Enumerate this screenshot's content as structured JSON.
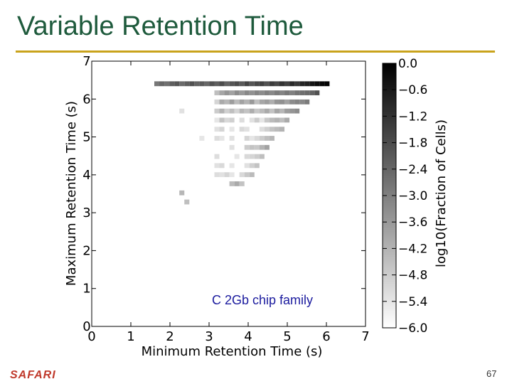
{
  "slide": {
    "title": "Variable Retention Time",
    "logo": "SAFARI",
    "page_number": "67",
    "colors": {
      "title": "#1e5a3c",
      "rule": "#c9a31c",
      "logo": "#c0392b",
      "annotation": "#1a1a9e"
    }
  },
  "chart_data": {
    "type": "heatmap",
    "title": "",
    "xlabel": "Minimum Retention Time (s)",
    "ylabel": "Maximum Retention Time (s)",
    "xlim": [
      0,
      7
    ],
    "ylim": [
      0,
      7
    ],
    "xticks": [
      "0",
      "1",
      "2",
      "3",
      "4",
      "5",
      "6",
      "7"
    ],
    "yticks": [
      "0",
      "1",
      "2",
      "3",
      "4",
      "5",
      "6",
      "7"
    ],
    "bin_size": 0.128,
    "value_label": "log10(Fraction of Cells)",
    "colorbar_ticks": [
      "0.0",
      "−0.6",
      "−1.2",
      "−1.8",
      "−2.4",
      "−3.0",
      "−3.6",
      "−4.2",
      "−4.8",
      "−5.4",
      "−6.0"
    ],
    "colorbar_range": [
      -6.0,
      0.0
    ],
    "annotation": "C 2Gb chip family",
    "cells": [
      {
        "x": 1.6,
        "y": 6.34,
        "v": -2.8
      },
      {
        "x": 1.728,
        "y": 6.34,
        "v": -2.4
      },
      {
        "x": 1.856,
        "y": 6.34,
        "v": -2.6
      },
      {
        "x": 1.984,
        "y": 6.34,
        "v": -2.2
      },
      {
        "x": 2.112,
        "y": 6.34,
        "v": -2.0
      },
      {
        "x": 2.24,
        "y": 6.34,
        "v": -2.5
      },
      {
        "x": 2.368,
        "y": 6.34,
        "v": -2.2
      },
      {
        "x": 2.496,
        "y": 6.34,
        "v": -1.9
      },
      {
        "x": 2.624,
        "y": 6.34,
        "v": -2.3
      },
      {
        "x": 2.752,
        "y": 6.34,
        "v": -2.1
      },
      {
        "x": 2.88,
        "y": 6.34,
        "v": -2.4
      },
      {
        "x": 3.008,
        "y": 6.34,
        "v": -1.9
      },
      {
        "x": 3.136,
        "y": 6.34,
        "v": -2.2
      },
      {
        "x": 3.264,
        "y": 6.34,
        "v": -1.8
      },
      {
        "x": 3.392,
        "y": 6.34,
        "v": -2.3
      },
      {
        "x": 3.52,
        "y": 6.34,
        "v": -2.0
      },
      {
        "x": 3.648,
        "y": 6.34,
        "v": -1.8
      },
      {
        "x": 3.776,
        "y": 6.34,
        "v": -2.1
      },
      {
        "x": 3.904,
        "y": 6.34,
        "v": -1.6
      },
      {
        "x": 4.032,
        "y": 6.34,
        "v": -2.0
      },
      {
        "x": 4.16,
        "y": 6.34,
        "v": -1.7
      },
      {
        "x": 4.288,
        "y": 6.34,
        "v": -1.5
      },
      {
        "x": 4.416,
        "y": 6.34,
        "v": -1.9
      },
      {
        "x": 4.544,
        "y": 6.34,
        "v": -1.4
      },
      {
        "x": 4.672,
        "y": 6.34,
        "v": -1.7
      },
      {
        "x": 4.8,
        "y": 6.34,
        "v": -1.2
      },
      {
        "x": 4.928,
        "y": 6.34,
        "v": -1.5
      },
      {
        "x": 5.056,
        "y": 6.34,
        "v": -1.0
      },
      {
        "x": 5.184,
        "y": 6.34,
        "v": -1.3
      },
      {
        "x": 5.312,
        "y": 6.34,
        "v": -0.9
      },
      {
        "x": 5.44,
        "y": 6.34,
        "v": -0.8
      },
      {
        "x": 5.568,
        "y": 6.34,
        "v": -0.5
      },
      {
        "x": 5.696,
        "y": 6.34,
        "v": -0.3
      },
      {
        "x": 5.824,
        "y": 6.34,
        "v": -0.2
      },
      {
        "x": 5.952,
        "y": 6.34,
        "v": -0.1
      },
      {
        "x": 3.136,
        "y": 6.1,
        "v": -4.5
      },
      {
        "x": 3.264,
        "y": 6.1,
        "v": -3.9
      },
      {
        "x": 3.392,
        "y": 6.1,
        "v": -3.5
      },
      {
        "x": 3.52,
        "y": 6.1,
        "v": -3.8
      },
      {
        "x": 3.648,
        "y": 6.1,
        "v": -3.3
      },
      {
        "x": 3.776,
        "y": 6.1,
        "v": -3.6
      },
      {
        "x": 3.904,
        "y": 6.1,
        "v": -3.2
      },
      {
        "x": 4.032,
        "y": 6.1,
        "v": -3.4
      },
      {
        "x": 4.16,
        "y": 6.1,
        "v": -3.1
      },
      {
        "x": 4.288,
        "y": 6.1,
        "v": -3.3
      },
      {
        "x": 4.416,
        "y": 6.1,
        "v": -3.0
      },
      {
        "x": 4.544,
        "y": 6.1,
        "v": -3.2
      },
      {
        "x": 4.672,
        "y": 6.1,
        "v": -2.9
      },
      {
        "x": 4.8,
        "y": 6.1,
        "v": -3.1
      },
      {
        "x": 4.928,
        "y": 6.1,
        "v": -2.8
      },
      {
        "x": 5.056,
        "y": 6.1,
        "v": -3.0
      },
      {
        "x": 5.184,
        "y": 6.1,
        "v": -2.7
      },
      {
        "x": 5.312,
        "y": 6.1,
        "v": -2.6
      },
      {
        "x": 5.44,
        "y": 6.1,
        "v": -2.5
      },
      {
        "x": 5.568,
        "y": 6.1,
        "v": -2.3
      },
      {
        "x": 5.696,
        "y": 6.1,
        "v": -1.9
      },
      {
        "x": 3.136,
        "y": 5.86,
        "v": -5.0
      },
      {
        "x": 3.264,
        "y": 5.86,
        "v": -4.0
      },
      {
        "x": 3.392,
        "y": 5.86,
        "v": -4.3
      },
      {
        "x": 3.52,
        "y": 5.86,
        "v": -3.7
      },
      {
        "x": 3.648,
        "y": 5.86,
        "v": -4.4
      },
      {
        "x": 3.776,
        "y": 5.86,
        "v": -3.8
      },
      {
        "x": 3.904,
        "y": 5.86,
        "v": -4.2
      },
      {
        "x": 4.032,
        "y": 5.86,
        "v": -3.6
      },
      {
        "x": 4.16,
        "y": 5.86,
        "v": -4.5
      },
      {
        "x": 4.288,
        "y": 5.86,
        "v": -3.9
      },
      {
        "x": 4.416,
        "y": 5.86,
        "v": -3.7
      },
      {
        "x": 4.544,
        "y": 5.86,
        "v": -4.1
      },
      {
        "x": 4.672,
        "y": 5.86,
        "v": -3.5
      },
      {
        "x": 4.8,
        "y": 5.86,
        "v": -3.4
      },
      {
        "x": 4.928,
        "y": 5.86,
        "v": -3.8
      },
      {
        "x": 5.056,
        "y": 5.86,
        "v": -3.3
      },
      {
        "x": 5.184,
        "y": 5.86,
        "v": -3.1
      },
      {
        "x": 5.312,
        "y": 5.86,
        "v": -3.2
      },
      {
        "x": 5.44,
        "y": 5.86,
        "v": -2.9
      },
      {
        "x": 2.24,
        "y": 5.62,
        "v": -5.3
      },
      {
        "x": 3.136,
        "y": 5.62,
        "v": -4.8
      },
      {
        "x": 3.264,
        "y": 5.62,
        "v": -4.2
      },
      {
        "x": 3.392,
        "y": 5.62,
        "v": -4.9
      },
      {
        "x": 3.52,
        "y": 5.62,
        "v": -4.5
      },
      {
        "x": 3.648,
        "y": 5.62,
        "v": -5.0
      },
      {
        "x": 3.776,
        "y": 5.62,
        "v": -4.3
      },
      {
        "x": 3.904,
        "y": 5.62,
        "v": -4.6
      },
      {
        "x": 4.032,
        "y": 5.62,
        "v": -4.1
      },
      {
        "x": 4.16,
        "y": 5.62,
        "v": -4.7
      },
      {
        "x": 4.288,
        "y": 5.62,
        "v": -4.4
      },
      {
        "x": 4.416,
        "y": 5.62,
        "v": -4.0
      },
      {
        "x": 4.544,
        "y": 5.62,
        "v": -4.6
      },
      {
        "x": 4.672,
        "y": 5.62,
        "v": -3.9
      },
      {
        "x": 4.8,
        "y": 5.62,
        "v": -4.3
      },
      {
        "x": 4.928,
        "y": 5.62,
        "v": -3.7
      },
      {
        "x": 5.056,
        "y": 5.62,
        "v": -3.5
      },
      {
        "x": 5.184,
        "y": 5.62,
        "v": -3.3
      },
      {
        "x": 3.136,
        "y": 5.38,
        "v": -5.4
      },
      {
        "x": 3.264,
        "y": 5.38,
        "v": -4.6
      },
      {
        "x": 3.392,
        "y": 5.38,
        "v": -5.1
      },
      {
        "x": 3.52,
        "y": 5.38,
        "v": -4.9
      },
      {
        "x": 3.776,
        "y": 5.38,
        "v": -5.2
      },
      {
        "x": 4.032,
        "y": 5.38,
        "v": -5.3
      },
      {
        "x": 4.16,
        "y": 5.38,
        "v": -4.8
      },
      {
        "x": 4.288,
        "y": 5.38,
        "v": -5.4
      },
      {
        "x": 4.416,
        "y": 5.38,
        "v": -4.7
      },
      {
        "x": 4.544,
        "y": 5.38,
        "v": -4.4
      },
      {
        "x": 4.672,
        "y": 5.38,
        "v": -4.2
      },
      {
        "x": 4.8,
        "y": 5.38,
        "v": -4.5
      },
      {
        "x": 4.928,
        "y": 5.38,
        "v": -4.0
      },
      {
        "x": 3.136,
        "y": 5.14,
        "v": -5.3
      },
      {
        "x": 3.264,
        "y": 5.14,
        "v": -5.0
      },
      {
        "x": 3.52,
        "y": 5.14,
        "v": -5.4
      },
      {
        "x": 3.776,
        "y": 5.14,
        "v": -5.1
      },
      {
        "x": 3.904,
        "y": 5.14,
        "v": -5.3
      },
      {
        "x": 4.288,
        "y": 5.14,
        "v": -5.2
      },
      {
        "x": 4.416,
        "y": 5.14,
        "v": -4.9
      },
      {
        "x": 4.544,
        "y": 5.14,
        "v": -4.6
      },
      {
        "x": 4.672,
        "y": 5.14,
        "v": -4.4
      },
      {
        "x": 4.8,
        "y": 5.14,
        "v": -4.2
      },
      {
        "x": 2.752,
        "y": 4.9,
        "v": -5.4
      },
      {
        "x": 3.136,
        "y": 4.9,
        "v": -5.2
      },
      {
        "x": 3.264,
        "y": 4.9,
        "v": -5.4
      },
      {
        "x": 3.52,
        "y": 4.9,
        "v": -5.3
      },
      {
        "x": 3.904,
        "y": 4.9,
        "v": -5.0
      },
      {
        "x": 4.032,
        "y": 4.9,
        "v": -5.4
      },
      {
        "x": 4.16,
        "y": 4.9,
        "v": -5.1
      },
      {
        "x": 4.288,
        "y": 4.9,
        "v": -4.8
      },
      {
        "x": 4.416,
        "y": 4.9,
        "v": -4.5
      },
      {
        "x": 4.544,
        "y": 4.9,
        "v": -4.3
      },
      {
        "x": 3.52,
        "y": 4.66,
        "v": -5.3
      },
      {
        "x": 3.904,
        "y": 4.66,
        "v": -4.8
      },
      {
        "x": 4.032,
        "y": 4.66,
        "v": -4.6
      },
      {
        "x": 4.16,
        "y": 4.66,
        "v": -4.7
      },
      {
        "x": 4.288,
        "y": 4.66,
        "v": -4.2
      },
      {
        "x": 4.416,
        "y": 4.66,
        "v": -3.8
      },
      {
        "x": 3.136,
        "y": 4.42,
        "v": -5.2
      },
      {
        "x": 3.648,
        "y": 4.42,
        "v": -5.4
      },
      {
        "x": 3.904,
        "y": 4.42,
        "v": -5.1
      },
      {
        "x": 4.032,
        "y": 4.42,
        "v": -5.0
      },
      {
        "x": 4.16,
        "y": 4.42,
        "v": -4.8
      },
      {
        "x": 4.288,
        "y": 4.42,
        "v": -4.5
      },
      {
        "x": 3.136,
        "y": 4.18,
        "v": -5.3
      },
      {
        "x": 3.264,
        "y": 4.18,
        "v": -5.1
      },
      {
        "x": 3.52,
        "y": 4.18,
        "v": -5.4
      },
      {
        "x": 3.904,
        "y": 4.18,
        "v": -5.3
      },
      {
        "x": 4.032,
        "y": 4.18,
        "v": -4.9
      },
      {
        "x": 4.16,
        "y": 4.18,
        "v": -4.6
      },
      {
        "x": 3.136,
        "y": 3.94,
        "v": -5.2
      },
      {
        "x": 3.264,
        "y": 3.94,
        "v": -5.3
      },
      {
        "x": 3.392,
        "y": 3.94,
        "v": -5.0
      },
      {
        "x": 3.52,
        "y": 3.94,
        "v": -5.4
      },
      {
        "x": 3.776,
        "y": 3.94,
        "v": -5.1
      },
      {
        "x": 3.904,
        "y": 3.94,
        "v": -4.7
      },
      {
        "x": 4.032,
        "y": 3.94,
        "v": -4.4
      },
      {
        "x": 3.52,
        "y": 3.7,
        "v": -4.4
      },
      {
        "x": 3.648,
        "y": 3.7,
        "v": -4.0
      },
      {
        "x": 3.776,
        "y": 3.7,
        "v": -4.6
      },
      {
        "x": 2.24,
        "y": 3.46,
        "v": -4.3
      },
      {
        "x": 2.368,
        "y": 3.22,
        "v": -4.5
      }
    ]
  }
}
